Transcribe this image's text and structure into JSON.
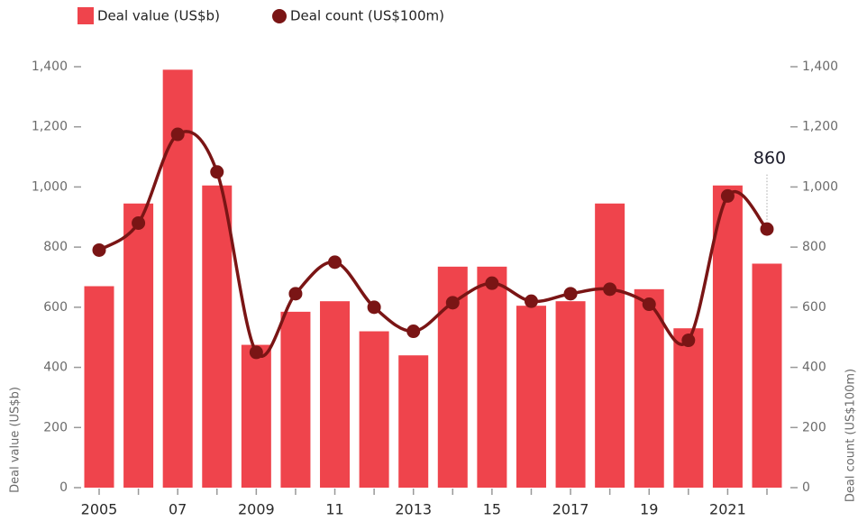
{
  "chart_data": {
    "type": "bar_line",
    "categories": [
      "2005",
      null,
      "07",
      null,
      "2009",
      null,
      "11",
      null,
      "2013",
      null,
      "15",
      null,
      "2017",
      null,
      "19",
      null,
      "2021",
      null
    ],
    "series": [
      {
        "name": "Deal value (US$b)",
        "type": "bar",
        "color": "#ef444c",
        "axis": "y",
        "values": [
          670,
          945,
          1390,
          1005,
          475,
          585,
          620,
          520,
          440,
          735,
          735,
          605,
          620,
          945,
          660,
          530,
          1005,
          745
        ]
      },
      {
        "name": "Deal count (US$100m)",
        "type": "line",
        "color": "#7a1515",
        "axis": "y2",
        "values": [
          790,
          880,
          1175,
          1050,
          450,
          645,
          750,
          600,
          520,
          615,
          680,
          620,
          645,
          660,
          610,
          490,
          970,
          860
        ]
      }
    ],
    "ylabel": "Deal value (US$b)",
    "y2label": "Deal count (US$100m)",
    "ylim": [
      0,
      1400
    ],
    "yticks": [
      0,
      200,
      400,
      600,
      800,
      {
        "value": 1000,
        "label": "1,000"
      },
      {
        "value": 1200,
        "label": "1,200"
      },
      {
        "value": 1400,
        "label": "1,400"
      }
    ],
    "y2lim": [
      0,
      1400
    ],
    "y2ticks": [
      0,
      200,
      400,
      600,
      800,
      {
        "value": 1000,
        "label": "1,000"
      },
      {
        "value": 1200,
        "label": "1,200"
      },
      {
        "value": 1400,
        "label": "1,400"
      }
    ],
    "grid": false,
    "legend": "top-left"
  }
}
